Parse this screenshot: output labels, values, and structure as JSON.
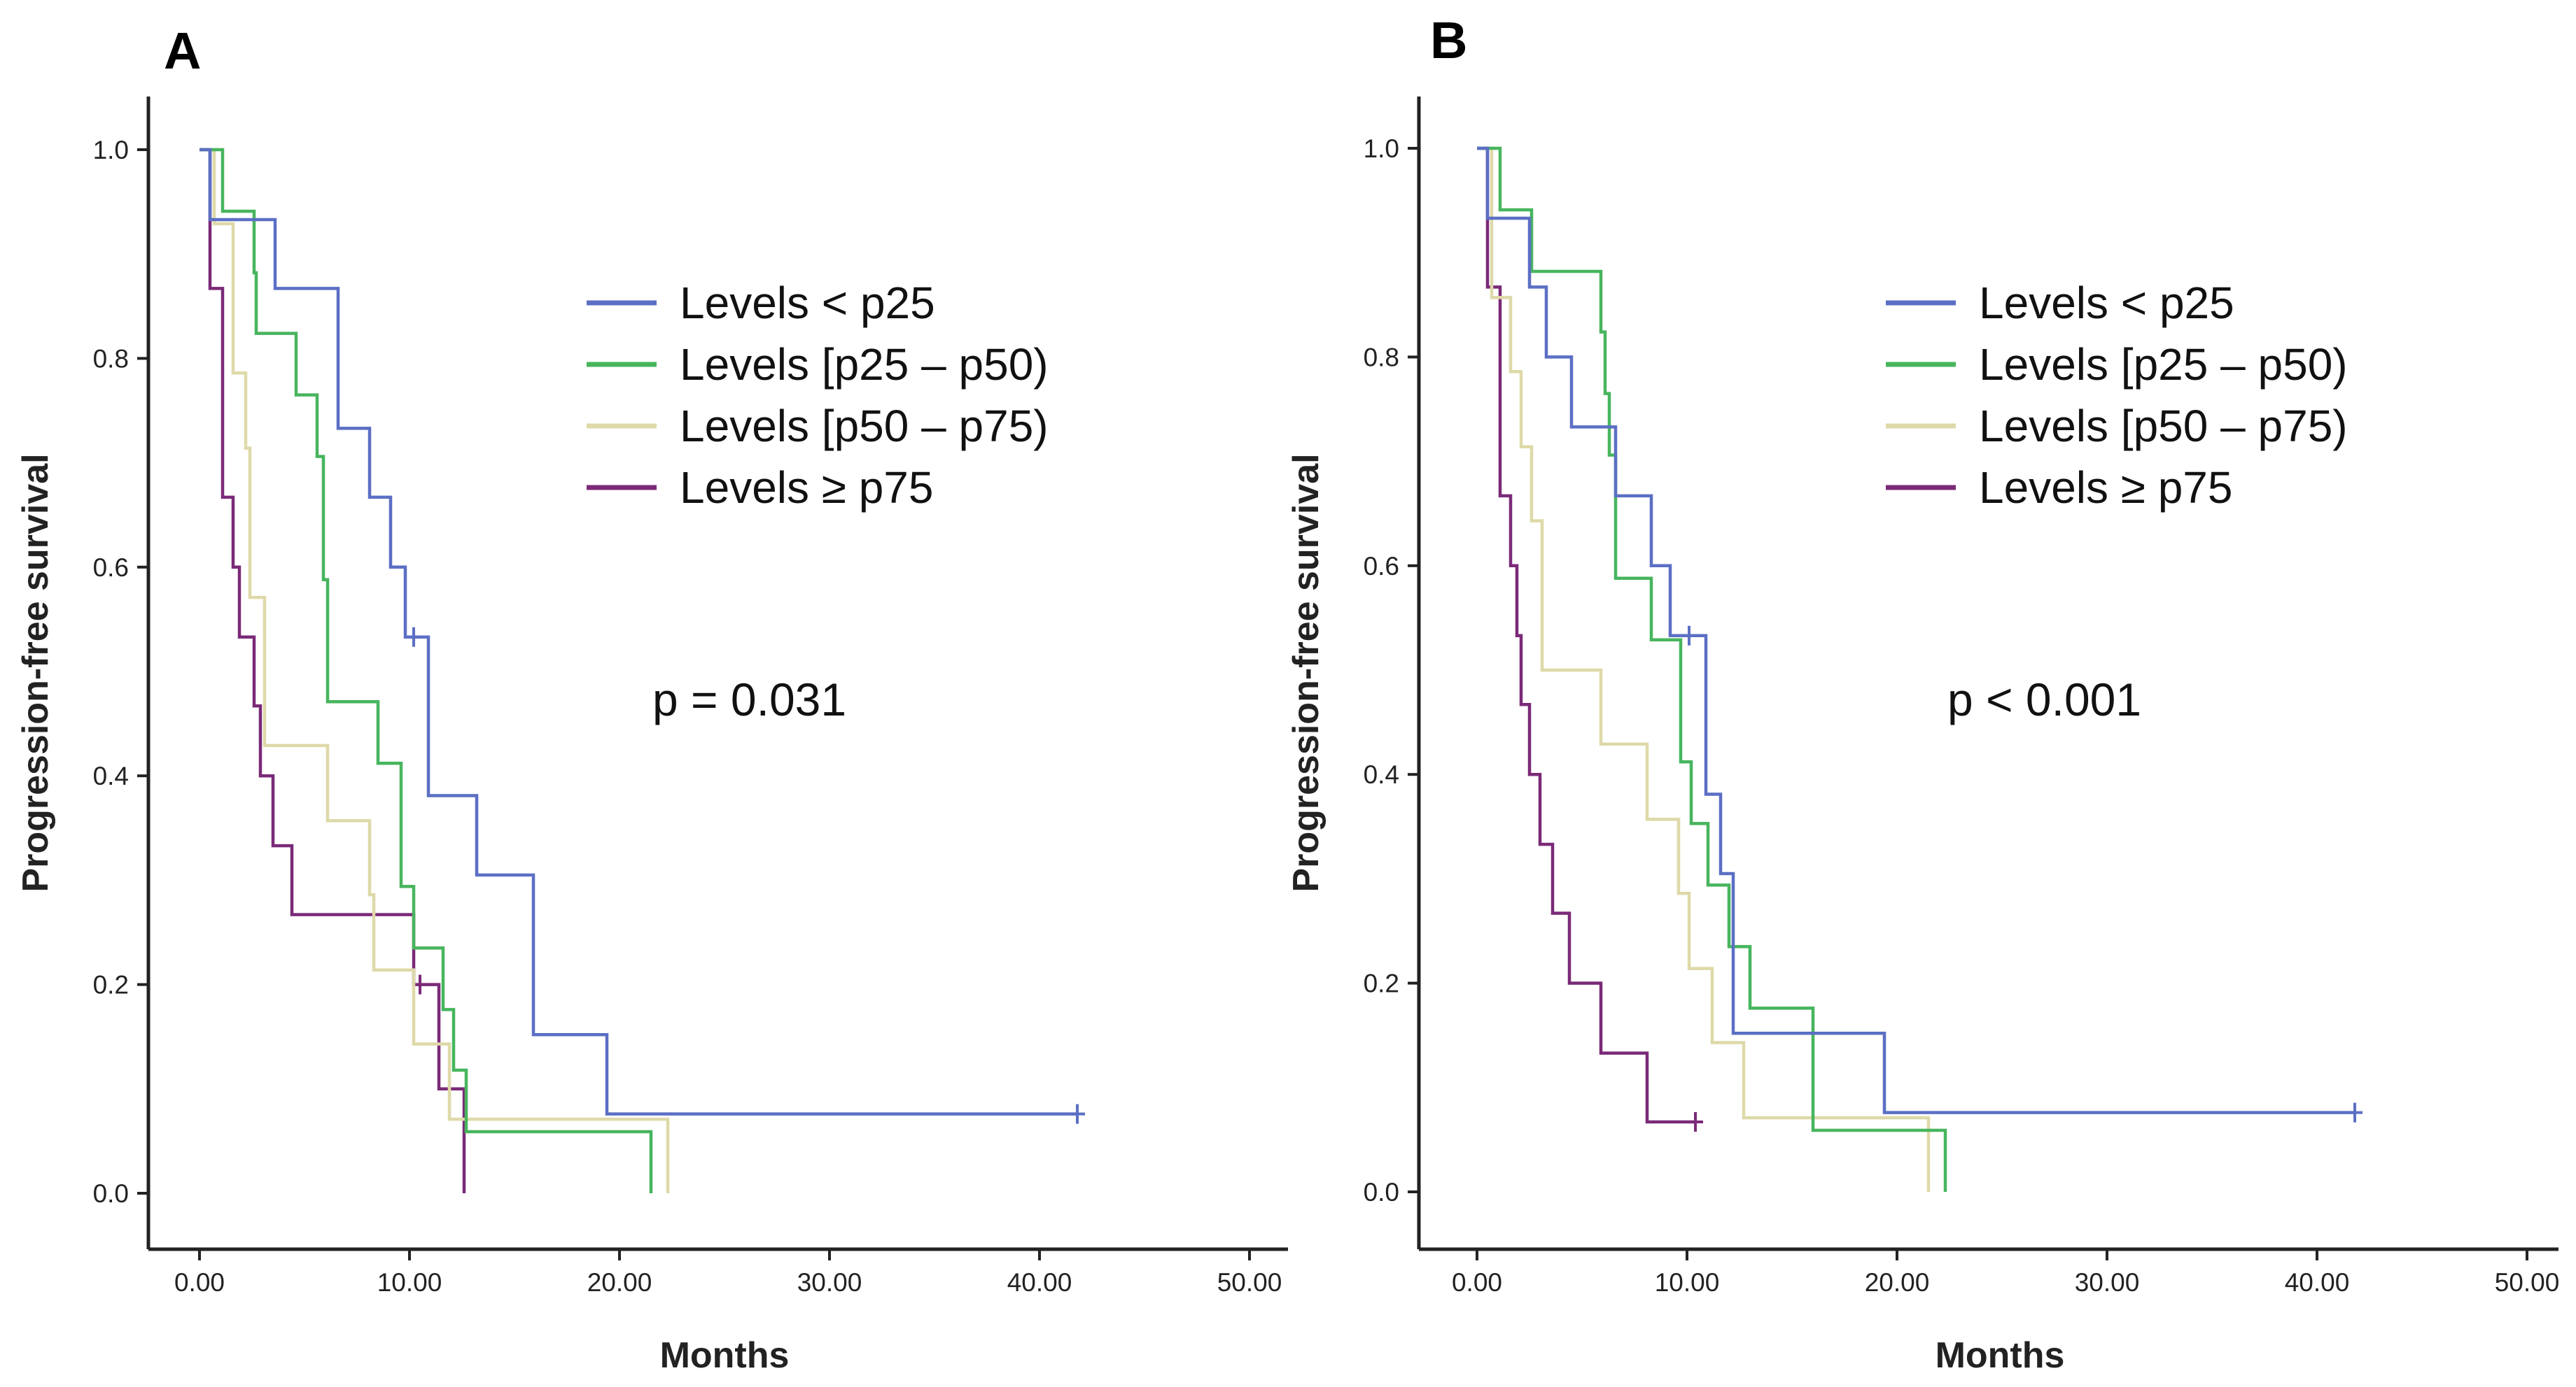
{
  "chart_data": [
    {
      "panel": "A",
      "type": "line",
      "title": "",
      "xlabel": "Months",
      "ylabel": "Progression-free survival",
      "xlim": [
        0,
        50
      ],
      "ylim": [
        0,
        1
      ],
      "x_ticks": [
        "0.00",
        "10.00",
        "20.00",
        "30.00",
        "40.00",
        "50.00"
      ],
      "y_ticks": [
        "0.0",
        "0.2",
        "0.4",
        "0.6",
        "0.8",
        "1.0"
      ],
      "annotation": "p = 0.031",
      "legend_position": "top-right",
      "series": [
        {
          "name": "Levels < p25",
          "color": "#5b6fc4",
          "steps": [
            [
              0,
              1.0
            ],
            [
              0.5,
              0.933
            ],
            [
              3.6,
              0.867
            ],
            [
              6.6,
              0.733
            ],
            [
              8.1,
              0.667
            ],
            [
              9.1,
              0.6
            ],
            [
              9.8,
              0.533
            ],
            [
              10.9,
              0.381
            ],
            [
              13.2,
              0.305
            ],
            [
              15.9,
              0.152
            ],
            [
              19.4,
              0.076
            ],
            [
              41.8,
              0.076
            ]
          ],
          "censor": [
            [
              10.2,
              0.533
            ],
            [
              41.8,
              0.076
            ]
          ],
          "drop_to": null
        },
        {
          "name": "Levels [p25 – p50)",
          "color": "#47b55d",
          "steps": [
            [
              0,
              1.0
            ],
            [
              1.1,
              0.941
            ],
            [
              2.6,
              0.882
            ],
            [
              2.7,
              0.824
            ],
            [
              4.6,
              0.765
            ],
            [
              5.6,
              0.706
            ],
            [
              5.9,
              0.588
            ],
            [
              6.1,
              0.471
            ],
            [
              8.5,
              0.412
            ],
            [
              9.6,
              0.294
            ],
            [
              10.2,
              0.235
            ],
            [
              11.6,
              0.176
            ],
            [
              12.1,
              0.118
            ],
            [
              12.7,
              0.059
            ],
            [
              21.5,
              0.059
            ]
          ],
          "censor": [],
          "drop_to": 0
        },
        {
          "name": "Levels [p50 – p75)",
          "color": "#ded9a8",
          "steps": [
            [
              0,
              1.0
            ],
            [
              0.7,
              0.929
            ],
            [
              1.6,
              0.786
            ],
            [
              2.2,
              0.714
            ],
            [
              2.4,
              0.571
            ],
            [
              3.1,
              0.429
            ],
            [
              6.1,
              0.357
            ],
            [
              8.1,
              0.286
            ],
            [
              8.3,
              0.214
            ],
            [
              10.2,
              0.143
            ],
            [
              11.9,
              0.071
            ],
            [
              22.3,
              0.071
            ]
          ],
          "censor": [],
          "drop_to": 0
        },
        {
          "name": "Levels ≥ p75",
          "color": "#7b2a78",
          "steps": [
            [
              0,
              1.0
            ],
            [
              0.5,
              0.867
            ],
            [
              1.1,
              0.667
            ],
            [
              1.6,
              0.6
            ],
            [
              1.9,
              0.533
            ],
            [
              2.6,
              0.467
            ],
            [
              2.9,
              0.4
            ],
            [
              3.5,
              0.333
            ],
            [
              4.4,
              0.267
            ],
            [
              10.2,
              0.2
            ],
            [
              11.4,
              0.1
            ],
            [
              12.6,
              0.1
            ]
          ],
          "censor": [
            [
              10.5,
              0.2
            ]
          ],
          "drop_to": 0
        }
      ]
    },
    {
      "panel": "B",
      "type": "line",
      "title": "",
      "xlabel": "Months",
      "ylabel": "Progression-free survival",
      "xlim": [
        0,
        50
      ],
      "ylim": [
        0,
        1
      ],
      "x_ticks": [
        "0.00",
        "10.00",
        "20.00",
        "30.00",
        "40.00",
        "50.00"
      ],
      "y_ticks": [
        "0.0",
        "0.2",
        "0.4",
        "0.6",
        "0.8",
        "1.0"
      ],
      "annotation": "p < 0.001",
      "legend_position": "top-right",
      "series": [
        {
          "name": "Levels < p25",
          "color": "#5b6fc4",
          "steps": [
            [
              0,
              1.0
            ],
            [
              0.5,
              0.933
            ],
            [
              2.5,
              0.867
            ],
            [
              3.3,
              0.8
            ],
            [
              4.5,
              0.733
            ],
            [
              6.6,
              0.667
            ],
            [
              8.3,
              0.6
            ],
            [
              9.2,
              0.533
            ],
            [
              10.9,
              0.381
            ],
            [
              11.6,
              0.305
            ],
            [
              12.2,
              0.152
            ],
            [
              19.4,
              0.076
            ],
            [
              41.8,
              0.076
            ]
          ],
          "censor": [
            [
              10.1,
              0.533
            ],
            [
              41.8,
              0.076
            ]
          ],
          "drop_to": null
        },
        {
          "name": "Levels [p25 – p50)",
          "color": "#47b55d",
          "steps": [
            [
              0,
              1.0
            ],
            [
              1.1,
              0.941
            ],
            [
              2.6,
              0.882
            ],
            [
              5.9,
              0.824
            ],
            [
              6.1,
              0.765
            ],
            [
              6.3,
              0.706
            ],
            [
              6.6,
              0.588
            ],
            [
              8.3,
              0.529
            ],
            [
              9.7,
              0.412
            ],
            [
              10.2,
              0.353
            ],
            [
              11.0,
              0.294
            ],
            [
              12.0,
              0.235
            ],
            [
              13.0,
              0.176
            ],
            [
              16.0,
              0.059
            ],
            [
              22.3,
              0.059
            ]
          ],
          "censor": [],
          "drop_to": 0
        },
        {
          "name": "Levels [p50 – p75)",
          "color": "#ded9a8",
          "steps": [
            [
              0,
              1.0
            ],
            [
              0.7,
              0.857
            ],
            [
              1.6,
              0.786
            ],
            [
              2.1,
              0.714
            ],
            [
              2.6,
              0.643
            ],
            [
              3.1,
              0.5
            ],
            [
              5.9,
              0.429
            ],
            [
              8.1,
              0.357
            ],
            [
              9.6,
              0.286
            ],
            [
              10.1,
              0.214
            ],
            [
              11.2,
              0.143
            ],
            [
              12.7,
              0.071
            ],
            [
              21.5,
              0.071
            ]
          ],
          "censor": [],
          "drop_to": 0
        },
        {
          "name": "Levels ≥ p75",
          "color": "#7b2a78",
          "steps": [
            [
              0,
              1.0
            ],
            [
              0.5,
              0.867
            ],
            [
              1.1,
              0.667
            ],
            [
              1.6,
              0.6
            ],
            [
              1.9,
              0.533
            ],
            [
              2.1,
              0.467
            ],
            [
              2.5,
              0.4
            ],
            [
              3.0,
              0.333
            ],
            [
              3.6,
              0.267
            ],
            [
              4.4,
              0.2
            ],
            [
              5.9,
              0.133
            ],
            [
              8.1,
              0.067
            ],
            [
              10.4,
              0.067
            ]
          ],
          "censor": [
            [
              10.4,
              0.067
            ]
          ],
          "drop_to": null
        }
      ]
    }
  ]
}
